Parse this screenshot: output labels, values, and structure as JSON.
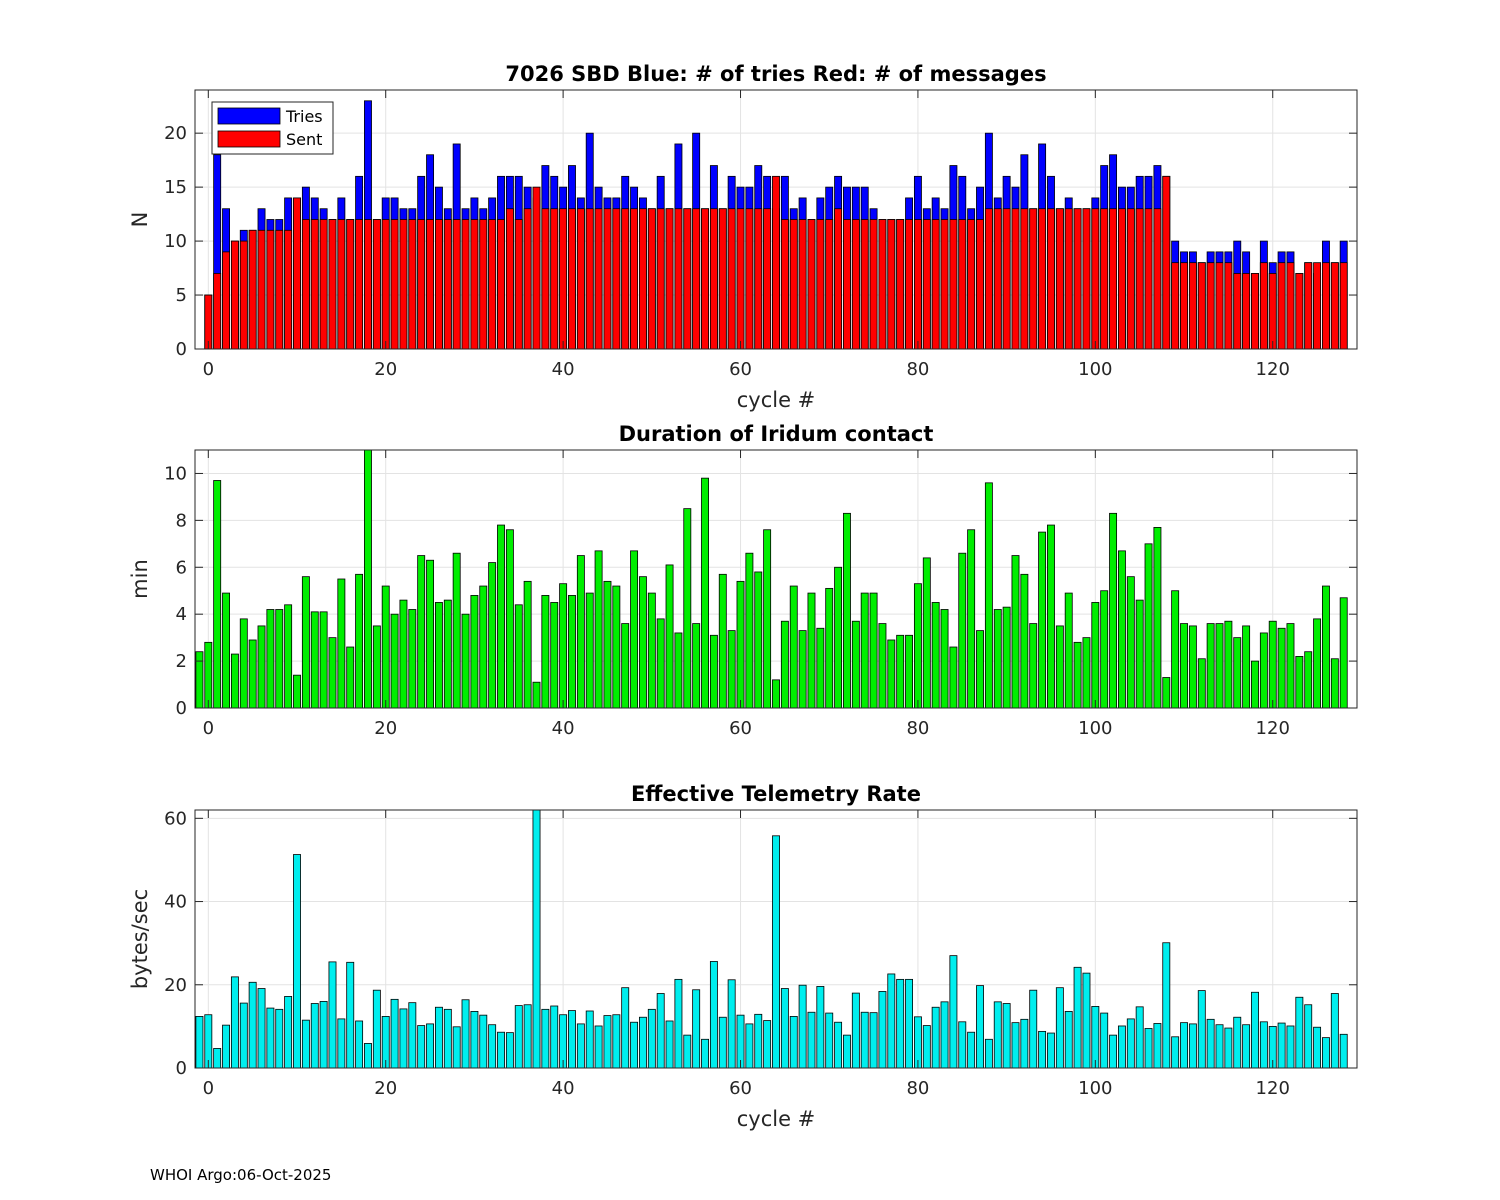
{
  "footer": "WHOI Argo:06-Oct-2025",
  "chart_data": [
    {
      "type": "bar",
      "stacked": "overlay",
      "title": "7026 SBD  Blue: # of tries   Red: # of messages",
      "xlabel": "cycle #",
      "ylabel": "N",
      "xlim": [
        -1.5,
        129.5
      ],
      "ylim": [
        0,
        24
      ],
      "xticks": [
        0,
        20,
        40,
        60,
        80,
        100,
        120
      ],
      "yticks": [
        0,
        5,
        10,
        15,
        20
      ],
      "grid": true,
      "legend_position": "top-left",
      "x_start": 0,
      "series": [
        {
          "name": "Tries",
          "color": "#0000ff",
          "values": [
            5,
            18,
            13,
            10,
            11,
            11,
            13,
            12,
            12,
            14,
            14,
            15,
            14,
            13,
            12,
            14,
            12,
            16,
            23,
            12,
            14,
            14,
            13,
            13,
            16,
            18,
            15,
            13,
            19,
            13,
            14,
            13,
            14,
            16,
            16,
            16,
            15,
            14,
            17,
            16,
            15,
            17,
            14,
            20,
            15,
            14,
            14,
            16,
            15,
            14,
            13,
            16,
            13,
            19,
            13,
            20,
            13,
            17,
            13,
            16,
            15,
            15,
            17,
            16,
            13,
            16,
            13,
            14,
            12,
            14,
            15,
            16,
            15,
            15,
            15,
            13,
            12,
            12,
            12,
            14,
            16,
            13,
            14,
            13,
            17,
            16,
            13,
            15,
            20,
            14,
            16,
            15,
            18,
            13,
            19,
            16,
            13,
            14,
            13,
            13,
            14,
            17,
            18,
            15,
            15,
            16,
            16,
            17,
            16,
            10,
            9,
            9,
            8,
            9,
            9,
            9,
            10,
            9,
            7,
            10,
            8,
            9,
            9,
            7,
            8,
            7,
            10,
            8,
            10
          ]
        },
        {
          "name": "Sent",
          "color": "#ff0000",
          "values": [
            5,
            7,
            9,
            10,
            10,
            11,
            11,
            11,
            11,
            11,
            14,
            12,
            12,
            12,
            12,
            12,
            12,
            12,
            12,
            12,
            12,
            12,
            12,
            12,
            12,
            12,
            12,
            12,
            12,
            12,
            12,
            12,
            12,
            12,
            13,
            12,
            13,
            15,
            13,
            13,
            13,
            13,
            13,
            13,
            13,
            13,
            13,
            13,
            13,
            13,
            13,
            13,
            13,
            13,
            13,
            13,
            13,
            13,
            13,
            13,
            13,
            13,
            13,
            13,
            16,
            12,
            12,
            12,
            12,
            12,
            12,
            13,
            12,
            12,
            12,
            12,
            12,
            12,
            12,
            12,
            12,
            12,
            12,
            12,
            12,
            12,
            12,
            12,
            13,
            13,
            13,
            13,
            13,
            13,
            13,
            13,
            13,
            13,
            13,
            13,
            13,
            13,
            13,
            13,
            13,
            13,
            13,
            13,
            16,
            8,
            8,
            8,
            8,
            8,
            8,
            8,
            7,
            7,
            7,
            8,
            7,
            8,
            8,
            7,
            8,
            8,
            8,
            8,
            8
          ]
        }
      ]
    },
    {
      "type": "bar",
      "title": "Duration of Iridum contact",
      "xlabel": "",
      "ylabel": "min",
      "xlim": [
        -1.5,
        129.5
      ],
      "ylim": [
        0,
        11
      ],
      "xticks": [
        0,
        20,
        40,
        60,
        80,
        100,
        120
      ],
      "yticks": [
        0,
        2,
        4,
        6,
        8,
        10
      ],
      "grid": true,
      "x_start": -1,
      "color": "#00ee00",
      "values": [
        2.4,
        2.8,
        9.7,
        4.9,
        2.3,
        3.8,
        2.9,
        3.5,
        4.2,
        4.2,
        4.4,
        1.4,
        5.6,
        4.1,
        4.1,
        3.0,
        5.5,
        2.6,
        5.7,
        11.0,
        3.5,
        5.2,
        4.0,
        4.6,
        4.2,
        6.5,
        6.3,
        4.5,
        4.6,
        6.6,
        4.0,
        4.8,
        5.2,
        6.2,
        7.8,
        7.6,
        4.4,
        5.4,
        1.1,
        4.8,
        4.5,
        5.3,
        4.8,
        6.5,
        4.9,
        6.7,
        5.4,
        5.2,
        3.6,
        6.7,
        5.6,
        4.9,
        3.8,
        6.1,
        3.2,
        8.5,
        3.6,
        9.8,
        3.1,
        5.7,
        3.3,
        5.4,
        6.6,
        5.8,
        7.6,
        1.2,
        3.7,
        5.2,
        3.3,
        4.9,
        3.4,
        5.1,
        6.0,
        8.3,
        3.7,
        4.9,
        4.9,
        3.6,
        2.9,
        3.1,
        3.1,
        5.3,
        6.4,
        4.5,
        4.2,
        2.6,
        6.6,
        7.6,
        3.3,
        9.6,
        4.2,
        4.3,
        6.5,
        5.7,
        3.6,
        7.5,
        7.8,
        3.5,
        4.9,
        2.8,
        3.0,
        4.5,
        5.0,
        8.3,
        6.7,
        5.6,
        4.6,
        7.0,
        7.7,
        1.3,
        5.0,
        3.6,
        3.5,
        2.1,
        3.6,
        3.6,
        3.7,
        3.0,
        3.5,
        2.0,
        3.2,
        3.7,
        3.4,
        3.6,
        2.2,
        2.4,
        3.8,
        5.2,
        2.1,
        4.7
      ]
    },
    {
      "type": "bar",
      "title": "Effective Telemetry Rate",
      "xlabel": "cycle #",
      "ylabel": "bytes/sec",
      "xlim": [
        -1.5,
        129.5
      ],
      "ylim": [
        0,
        62
      ],
      "xticks": [
        0,
        20,
        40,
        60,
        80,
        100,
        120
      ],
      "yticks": [
        0,
        20,
        40,
        60
      ],
      "grid": true,
      "x_start": -1,
      "color": "#00eeee",
      "values": [
        12.4,
        12.8,
        4.7,
        10.3,
        21.9,
        15.6,
        20.6,
        19.1,
        14.4,
        14.1,
        17.2,
        51.3,
        11.5,
        15.5,
        16.0,
        25.5,
        11.8,
        25.4,
        11.3,
        5.9,
        18.7,
        12.4,
        16.5,
        14.2,
        15.7,
        10.2,
        10.6,
        14.6,
        14.1,
        9.9,
        16.4,
        13.6,
        12.7,
        10.4,
        8.6,
        8.5,
        15.0,
        15.2,
        62.0,
        14.1,
        14.9,
        12.8,
        13.8,
        10.6,
        13.7,
        10.1,
        12.6,
        12.8,
        19.3,
        11.0,
        12.2,
        14.1,
        17.9,
        11.3,
        21.3,
        7.9,
        18.8,
        6.9,
        25.6,
        12.2,
        21.2,
        12.7,
        10.6,
        12.9,
        11.4,
        55.8,
        19.1,
        12.4,
        19.9,
        13.4,
        19.6,
        13.2,
        11.0,
        7.9,
        18.0,
        13.4,
        13.3,
        18.4,
        22.6,
        21.3,
        21.3,
        12.3,
        10.2,
        14.6,
        15.9,
        27.0,
        11.1,
        8.6,
        19.8,
        6.9,
        15.9,
        15.5,
        10.9,
        11.7,
        18.7,
        8.8,
        8.4,
        19.3,
        13.6,
        24.2,
        22.8,
        14.8,
        13.2,
        7.9,
        10.1,
        11.8,
        14.7,
        9.5,
        10.7,
        30.1,
        7.5,
        10.9,
        10.6,
        18.6,
        11.7,
        10.4,
        9.6,
        12.2,
        10.4,
        18.2,
        11.1,
        10.0,
        10.8,
        10.1,
        17.0,
        15.2,
        9.8,
        7.3,
        17.9,
        8.1
      ]
    }
  ]
}
